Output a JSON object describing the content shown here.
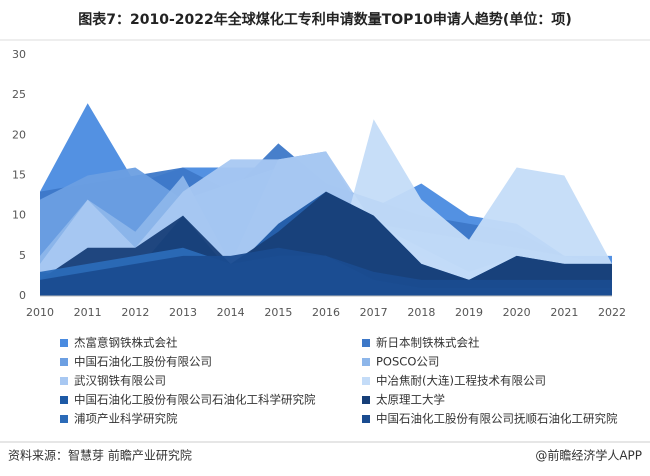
{
  "chart_data": {
    "type": "area",
    "title": "图表7：2010-2022年全球煤化工专利申请数量TOP10申请人趋势(单位：项)",
    "x": [
      2010,
      2011,
      2012,
      2013,
      2014,
      2015,
      2016,
      2017,
      2018,
      2019,
      2020,
      2021,
      2022
    ],
    "xlim": [
      2010,
      2022
    ],
    "ylim": [
      0,
      30
    ],
    "yticks": [
      0,
      5,
      10,
      15,
      20,
      25,
      30
    ],
    "series": [
      {
        "name": "杰富意钢铁株式会社",
        "color": "#4a8be0",
        "values": [
          13,
          24,
          14,
          16,
          16,
          16,
          13,
          11,
          14,
          10,
          9,
          5,
          5
        ]
      },
      {
        "name": "新日本制铁株式会社",
        "color": "#3d78c8",
        "values": [
          13,
          14,
          15,
          16,
          13,
          19,
          14,
          12,
          10,
          9,
          8,
          5,
          4
        ]
      },
      {
        "name": "中国石油化工股份有限公司",
        "color": "#6c9fe2",
        "values": [
          12,
          15,
          16,
          12,
          14,
          16,
          10,
          9,
          8,
          7,
          6,
          5,
          4
        ]
      },
      {
        "name": "POSCO公司",
        "color": "#8db6ea",
        "values": [
          5,
          12,
          8,
          15,
          4,
          17,
          18,
          8,
          5,
          2,
          4,
          4,
          4
        ]
      },
      {
        "name": "武汉钢铁有限公司",
        "color": "#a8c8f2",
        "values": [
          4,
          12,
          6,
          13,
          17,
          17,
          18,
          9,
          6,
          3,
          5,
          4,
          4
        ]
      },
      {
        "name": "中冶焦耐(大连)工程技术有限公司",
        "color": "#c4dcf8",
        "values": [
          0,
          0,
          0,
          0,
          0,
          0,
          0,
          22,
          12,
          7,
          16,
          15,
          4
        ]
      },
      {
        "name": "中国石油化工股份有限公司石油化工科学研究院",
        "color": "#1e5aa6",
        "values": [
          3,
          2,
          3,
          10,
          3,
          9,
          13,
          10,
          4,
          2,
          5,
          4,
          4
        ]
      },
      {
        "name": "太原理工大学",
        "color": "#173f78",
        "values": [
          2,
          6,
          6,
          10,
          4,
          8,
          13,
          10,
          4,
          2,
          5,
          4,
          4
        ]
      },
      {
        "name": "浦项产业科学研究院",
        "color": "#2b6bb8",
        "values": [
          3,
          4,
          5,
          6,
          4,
          5,
          5,
          2,
          1,
          1,
          1,
          1,
          1
        ]
      },
      {
        "name": "中国石油化工股份有限公司抚顺石油化工研究院",
        "color": "#1a4c90",
        "values": [
          2,
          3,
          4,
          5,
          5,
          6,
          5,
          3,
          2,
          2,
          2,
          2,
          2
        ]
      }
    ],
    "source": "资料来源：智慧芽 前瞻产业研究院",
    "credit": "@前瞻经济学人APP"
  }
}
